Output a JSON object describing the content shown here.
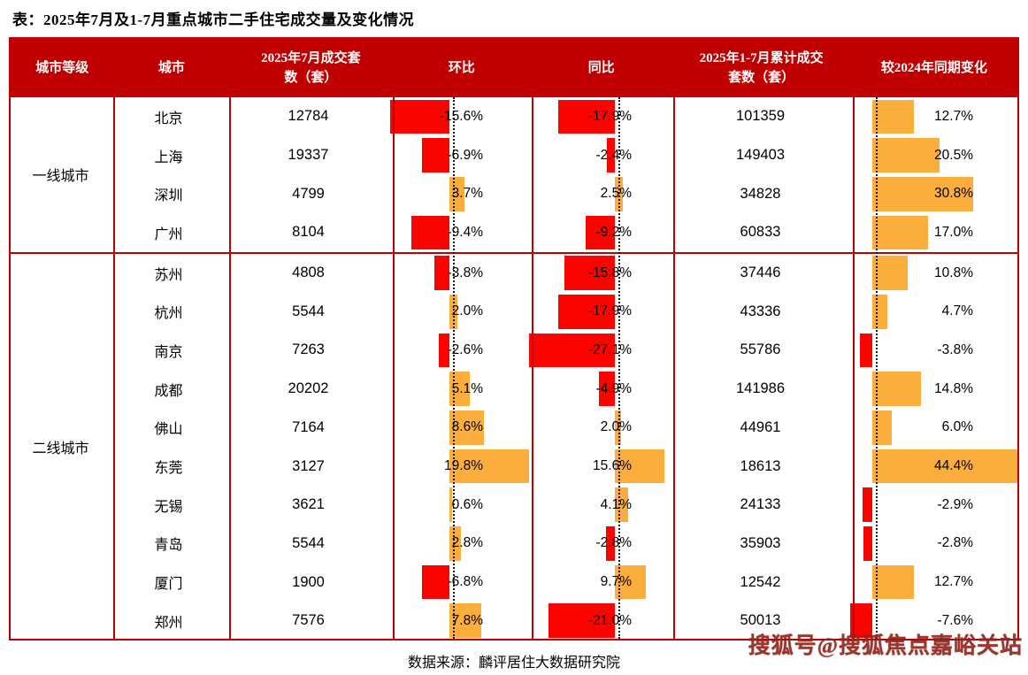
{
  "title": "表：2025年7月及1-7月重点城市二手住宅成交量及变化情况",
  "chart_data": {
    "type": "table",
    "title": "2025年7月及1-7月重点城市二手住宅成交量及变化情况",
    "columns": [
      "城市等级",
      "城市",
      "2025年7月成交套数（套）",
      "环比",
      "同比",
      "2025年1-7月累计成交套数（套）",
      "较2024年同期变化"
    ],
    "units": "%",
    "colors": {
      "positive_bar": "#FBAE3C",
      "negative_bar": "#FA0400",
      "header_bg": "#C00000",
      "grid": "#C00000"
    },
    "groups": [
      {
        "tier": "一线城市",
        "rows": [
          {
            "city": "北京",
            "jul": "12784",
            "mom": -15.6,
            "mom_label": "-15.6%",
            "yoy": -17.9,
            "yoy_label": "-17.9%",
            "cum": "101359",
            "chg": 12.7,
            "chg_label": "12.7%"
          },
          {
            "city": "上海",
            "jul": "19337",
            "mom": -6.9,
            "mom_label": "-6.9%",
            "yoy": -2.4,
            "yoy_label": "-2.4%",
            "cum": "149403",
            "chg": 20.5,
            "chg_label": "20.5%"
          },
          {
            "city": "深圳",
            "jul": "4799",
            "mom": 3.7,
            "mom_label": "3.7%",
            "yoy": 2.5,
            "yoy_label": "2.5%",
            "cum": "34828",
            "chg": 30.8,
            "chg_label": "30.8%"
          },
          {
            "city": "广州",
            "jul": "8104",
            "mom": -9.4,
            "mom_label": "-9.4%",
            "yoy": -9.2,
            "yoy_label": "-9.2%",
            "cum": "60833",
            "chg": 17.0,
            "chg_label": "17.0%"
          }
        ]
      },
      {
        "tier": "二线城市",
        "rows": [
          {
            "city": "苏州",
            "jul": "4808",
            "mom": -3.8,
            "mom_label": "-3.8%",
            "yoy": -15.8,
            "yoy_label": "-15.8%",
            "cum": "37446",
            "chg": 10.8,
            "chg_label": "10.8%"
          },
          {
            "city": "杭州",
            "jul": "5544",
            "mom": 2.0,
            "mom_label": "2.0%",
            "yoy": -17.9,
            "yoy_label": "-17.9%",
            "cum": "43336",
            "chg": 4.7,
            "chg_label": "4.7%"
          },
          {
            "city": "南京",
            "jul": "7263",
            "mom": -2.6,
            "mom_label": "-2.6%",
            "yoy": -27.1,
            "yoy_label": "-27.1%",
            "cum": "55786",
            "chg": -3.8,
            "chg_label": "-3.8%"
          },
          {
            "city": "成都",
            "jul": "20202",
            "mom": 5.1,
            "mom_label": "5.1%",
            "yoy": -4.9,
            "yoy_label": "-4.9%",
            "cum": "141986",
            "chg": 14.8,
            "chg_label": "14.8%"
          },
          {
            "city": "佛山",
            "jul": "7164",
            "mom": 8.6,
            "mom_label": "8.6%",
            "yoy": 2.0,
            "yoy_label": "2.0%",
            "cum": "44961",
            "chg": 6.0,
            "chg_label": "6.0%"
          },
          {
            "city": "东莞",
            "jul": "3127",
            "mom": 19.8,
            "mom_label": "19.8%",
            "yoy": 15.6,
            "yoy_label": "15.6%",
            "cum": "18613",
            "chg": 44.4,
            "chg_label": "44.4%"
          },
          {
            "city": "无锡",
            "jul": "3621",
            "mom": 0.6,
            "mom_label": "0.6%",
            "yoy": 4.1,
            "yoy_label": "4.1%",
            "cum": "24133",
            "chg": -2.9,
            "chg_label": "-2.9%"
          },
          {
            "city": "青岛",
            "jul": "5544",
            "mom": 2.8,
            "mom_label": "2.8%",
            "yoy": -2.8,
            "yoy_label": "-2.8%",
            "cum": "35903",
            "chg": -2.8,
            "chg_label": "-2.8%"
          },
          {
            "city": "厦门",
            "jul": "1900",
            "mom": -6.8,
            "mom_label": "-6.8%",
            "yoy": 9.7,
            "yoy_label": "9.7%",
            "cum": "12542",
            "chg": 12.7,
            "chg_label": "12.7%"
          },
          {
            "city": "郑州",
            "jul": "7576",
            "mom": 7.8,
            "mom_label": "7.8%",
            "yoy": -21.0,
            "yoy_label": "-21.0%",
            "cum": "50013",
            "chg": -7.6,
            "chg_label": "-7.6%"
          }
        ]
      }
    ]
  },
  "footer": {
    "source": "数据来源：麟评居住大数据研究院",
    "watermark": "搜狐号@搜狐焦点嘉峪关站"
  }
}
